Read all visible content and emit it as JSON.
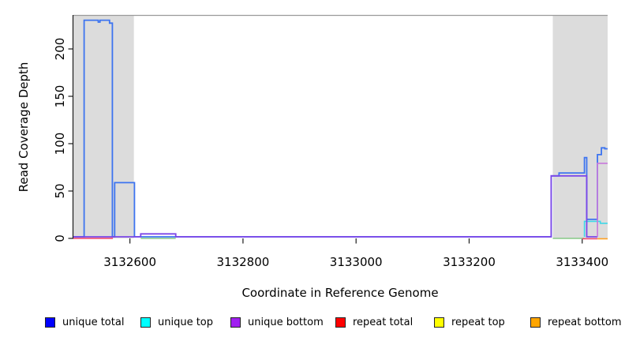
{
  "chart_data": {
    "type": "line",
    "title": "",
    "xlabel": "Coordinate in Reference Genome",
    "ylabel": "Read Coverage Depth",
    "xlim": [
      3132500,
      3133445
    ],
    "ylim": [
      0,
      235
    ],
    "x_ticks": [
      3132600,
      3132800,
      3133000,
      3133200,
      3133400
    ],
    "y_ticks": [
      0,
      50,
      100,
      150,
      200
    ],
    "grid": false,
    "legend_position": "bottom",
    "shaded_regions": [
      {
        "from": 3132500,
        "to": 3132607,
        "color": "#DCDCDC"
      },
      {
        "from": 3133348,
        "to": 3133445,
        "color": "#DCDCDC"
      }
    ],
    "series": [
      {
        "name": "unique total",
        "legend_color": "#0000FF",
        "paths": [
          {
            "color": "#3D74F0",
            "width": 1.8,
            "dy": 0,
            "vertices": [
              [
                3132500,
                0
              ],
              [
                3132519,
                0
              ],
              [
                3132519,
                224
              ],
              [
                3132544,
                224
              ],
              [
                3132544,
                222
              ],
              [
                3132547,
                222
              ],
              [
                3132547,
                224
              ],
              [
                3132564,
                224
              ],
              [
                3132564,
                221
              ],
              [
                3132569,
                221
              ],
              [
                3132569,
                0
              ],
              [
                3132573,
                0
              ],
              [
                3132573,
                56
              ],
              [
                3132608,
                56
              ],
              [
                3132608,
                0
              ],
              [
                3133345,
                0
              ],
              [
                3133345,
                63
              ],
              [
                3133359,
                63
              ],
              [
                3133359,
                66
              ],
              [
                3133404,
                66
              ],
              [
                3133404,
                82
              ],
              [
                3133408,
                82
              ],
              [
                3133408,
                18
              ],
              [
                3133427,
                18
              ],
              [
                3133427,
                85
              ],
              [
                3133434,
                85
              ],
              [
                3133434,
                92
              ],
              [
                3133440,
                92
              ],
              [
                3133440,
                91
              ],
              [
                3133445,
                91
              ]
            ]
          }
        ]
      },
      {
        "name": "unique top",
        "legend_color": "#00FFFF",
        "paths": [
          {
            "color": "#3ED8E8",
            "width": 1.6,
            "dy": 0,
            "vertices": [
              [
                3133404,
                0
              ],
              [
                3133404,
                16
              ],
              [
                3133432,
                16
              ],
              [
                3133432,
                14
              ],
              [
                3133445,
                14
              ]
            ]
          }
        ]
      },
      {
        "name": "unique bottom",
        "legend_color": "#A020F0",
        "paths": [
          {
            "color": "#7C47E8",
            "width": 1.8,
            "dy": 0,
            "vertices": [
              [
                3132500,
                0
              ],
              [
                3132619,
                0
              ],
              [
                3132619,
                3
              ],
              [
                3132681,
                3
              ],
              [
                3132681,
                0
              ],
              [
                3133345,
                0
              ],
              [
                3133345,
                63
              ],
              [
                3133408,
                63
              ],
              [
                3133408,
                0
              ],
              [
                3133427,
                0
              ]
            ]
          },
          {
            "color": "#C878DC",
            "width": 1.6,
            "dy": 0,
            "vertices": [
              [
                3133427,
                0
              ],
              [
                3133427,
                76
              ],
              [
                3133445,
                76
              ]
            ]
          }
        ]
      },
      {
        "name": "repeat total",
        "legend_color": "#FF0000",
        "paths": [
          {
            "color": "#F2456A",
            "width": 1.6,
            "dy": 2,
            "vertices": [
              [
                3132500,
                0
              ],
              [
                3132570,
                0
              ]
            ]
          },
          {
            "color": "#F2456A",
            "width": 1.6,
            "dy": 2.5,
            "vertices": [
              [
                3133400,
                0
              ],
              [
                3133427,
                0
              ]
            ]
          }
        ]
      },
      {
        "name": "repeat top",
        "legend_color": "#FFFF00",
        "paths": []
      },
      {
        "name": "repeat bottom",
        "legend_color": "#FFA500",
        "paths": [
          {
            "color": "#FFA020",
            "width": 1.6,
            "dy": 2.5,
            "vertices": [
              [
                3133427,
                0
              ],
              [
                3133445,
                0
              ]
            ]
          }
        ]
      }
    ],
    "unattributed_green_baseline": [
      {
        "color": "#86C986",
        "width": 1.6,
        "dy": 2,
        "vertices": [
          [
            3132619,
            0
          ],
          [
            3132681,
            0
          ]
        ]
      },
      {
        "color": "#86C986",
        "width": 1.6,
        "dy": 2,
        "vertices": [
          [
            3133348,
            0
          ],
          [
            3133404,
            0
          ]
        ]
      }
    ]
  },
  "legend": {
    "items": [
      {
        "label": "unique total",
        "color": "#0000FF"
      },
      {
        "label": "unique top",
        "color": "#00FFFF"
      },
      {
        "label": "unique bottom",
        "color": "#A020F0"
      },
      {
        "label": "repeat total",
        "color": "#FF0000"
      },
      {
        "label": "repeat top",
        "color": "#FFFF00"
      },
      {
        "label": "repeat bottom",
        "color": "#FFA500"
      }
    ]
  }
}
